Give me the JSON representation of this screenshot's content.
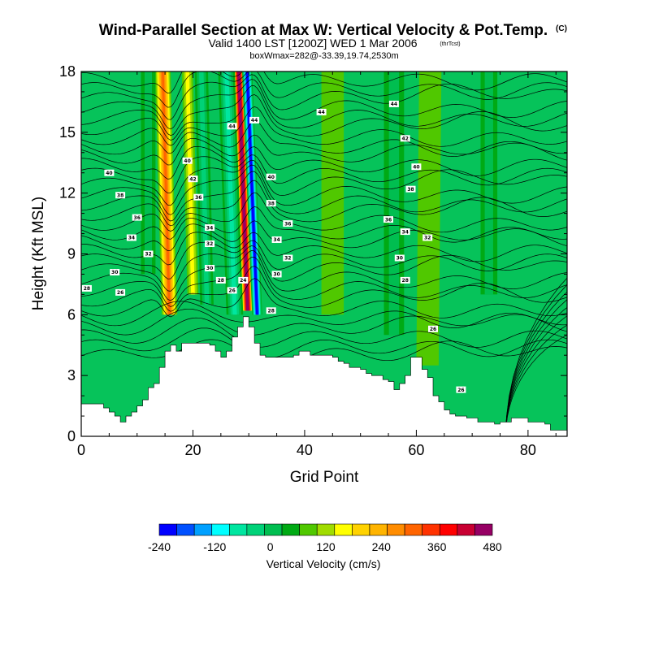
{
  "colors": {
    "background": "#ffffff",
    "terrain": "#ffffff",
    "contour": "#000000",
    "base_field": "#06c35a"
  },
  "chart_data": {
    "type": "heatmap",
    "title": "Wind-Parallel Section at Max W: Vertical Velocity & Pot.Temp.",
    "title_units": "(C)",
    "subtitle": "Valid 1400 LST [1200Z] WED 1 Mar 2006",
    "subtitle_tag": "(thrTcst)",
    "subtitle2": "boxWmax=282@-33.39,19.74,2530m",
    "xlabel": "Grid Point",
    "ylabel": "Height (Kft MSL)",
    "xlim": [
      0,
      87
    ],
    "ylim": [
      0,
      18
    ],
    "xticks": [
      0,
      20,
      40,
      60,
      80
    ],
    "yticks": [
      0,
      3,
      6,
      9,
      12,
      15,
      18
    ],
    "colorbar": {
      "label": "Vertical Velocity (cm/s)",
      "levels": [
        -240,
        -210,
        -180,
        -150,
        -120,
        -90,
        -60,
        -30,
        0,
        30,
        60,
        90,
        120,
        150,
        180,
        210,
        240,
        270,
        300,
        330,
        360,
        390,
        420,
        450,
        480
      ],
      "colors": [
        "#0000ff",
        "#0050ff",
        "#00a0ff",
        "#00ffff",
        "#00e6a0",
        "#00d278",
        "#00be50",
        "#00aa14",
        "#50c800",
        "#a0dc00",
        "#ffff00",
        "#ffd200",
        "#ffb400",
        "#ff8c00",
        "#ff6400",
        "#ff3200",
        "#ff0000",
        "#c80032",
        "#960064"
      ],
      "tick_labels": [
        "-240",
        "-120",
        "0",
        "120",
        "240",
        "360",
        "480"
      ],
      "tick_values": [
        -240,
        -120,
        0,
        120,
        240,
        360,
        480
      ]
    },
    "terrain_height_kft": [
      1.6,
      1.6,
      1.6,
      1.6,
      1.4,
      1.2,
      1.0,
      0.7,
      1.0,
      1.2,
      1.5,
      1.8,
      2.4,
      2.6,
      3.4,
      4.2,
      4.5,
      4.2,
      4.6,
      4.6,
      4.6,
      4.6,
      4.6,
      4.5,
      4.2,
      3.9,
      4.2,
      4.9,
      5.4,
      5.9,
      5.4,
      4.6,
      4.0,
      3.9,
      3.9,
      3.9,
      3.9,
      3.9,
      4.0,
      4.2,
      4.2,
      4.0,
      4.0,
      4.0,
      4.0,
      3.9,
      3.7,
      3.6,
      3.4,
      3.4,
      3.3,
      3.1,
      3.0,
      3.0,
      2.8,
      2.7,
      2.3,
      2.6,
      3.0,
      3.9,
      3.9,
      3.3,
      2.9,
      2.0,
      1.7,
      1.3,
      1.1,
      1.0,
      1.0,
      0.9,
      0.9,
      0.7,
      0.7,
      0.7,
      0.6,
      0.7,
      0.7,
      0.9,
      0.9,
      0.9,
      0.7,
      0.7,
      0.7,
      0.6,
      0.3,
      0.3,
      0.3
    ],
    "velocity_bands": [
      {
        "x": 15.8,
        "z_bottom": 6.0,
        "z_top": 18,
        "lean": -1.2,
        "half_width": 1.4,
        "peak": 200
      },
      {
        "x": 20.0,
        "z_bottom": 7.0,
        "z_top": 18,
        "lean": -1.0,
        "half_width": 1.0,
        "peak": 80
      },
      {
        "x": 22.5,
        "z_bottom": 6.5,
        "z_top": 18,
        "lean": -1.0,
        "half_width": 1.2,
        "peak": -90
      },
      {
        "x": 29.8,
        "z_bottom": 6.2,
        "z_top": 18,
        "lean": -1.6,
        "half_width": 1.0,
        "peak": 400
      },
      {
        "x": 31.5,
        "z_bottom": 6.0,
        "z_top": 18,
        "lean": -1.8,
        "half_width": 0.9,
        "peak": -260
      },
      {
        "x": 27.5,
        "z_bottom": 6.0,
        "z_top": 18,
        "lean": -1.5,
        "half_width": 1.5,
        "peak": -110
      },
      {
        "x": 45.0,
        "z_bottom": 6.0,
        "z_top": 18,
        "lean": 0.0,
        "half_width": 2.0,
        "peak": 40
      },
      {
        "x": 56.0,
        "z_bottom": 5.0,
        "z_top": 18,
        "lean": 0.0,
        "half_width": 1.8,
        "peak": -60
      },
      {
        "x": 62.0,
        "z_bottom": 3.5,
        "z_top": 18,
        "lean": 0.5,
        "half_width": 2.0,
        "peak": 40
      },
      {
        "x": 73.0,
        "z_bottom": 7.0,
        "z_top": 18,
        "lean": 0.0,
        "half_width": 1.5,
        "peak": -50
      },
      {
        "x": 12.0,
        "z_bottom": 8.0,
        "z_top": 18,
        "lean": 0.0,
        "half_width": 1.3,
        "peak": -60
      }
    ],
    "contour_labels": [
      {
        "text": "40",
        "x": 5,
        "y": 13.0
      },
      {
        "text": "38",
        "x": 7,
        "y": 11.9
      },
      {
        "text": "36",
        "x": 10,
        "y": 10.8
      },
      {
        "text": "34",
        "x": 9,
        "y": 9.8
      },
      {
        "text": "32",
        "x": 12,
        "y": 9.0
      },
      {
        "text": "30",
        "x": 6,
        "y": 8.1
      },
      {
        "text": "28",
        "x": 1,
        "y": 7.3
      },
      {
        "text": "26",
        "x": 7,
        "y": 7.1
      },
      {
        "text": "40",
        "x": 19,
        "y": 13.6
      },
      {
        "text": "42",
        "x": 20,
        "y": 12.7
      },
      {
        "text": "36",
        "x": 21,
        "y": 11.8
      },
      {
        "text": "34",
        "x": 23,
        "y": 10.3
      },
      {
        "text": "32",
        "x": 23,
        "y": 9.5
      },
      {
        "text": "30",
        "x": 23,
        "y": 8.3
      },
      {
        "text": "28",
        "x": 25,
        "y": 7.7
      },
      {
        "text": "26",
        "x": 27,
        "y": 7.2
      },
      {
        "text": "24",
        "x": 29,
        "y": 7.7
      },
      {
        "text": "44",
        "x": 27,
        "y": 15.3
      },
      {
        "text": "44",
        "x": 31,
        "y": 15.6
      },
      {
        "text": "40",
        "x": 34,
        "y": 12.8
      },
      {
        "text": "38",
        "x": 34,
        "y": 11.5
      },
      {
        "text": "36",
        "x": 37,
        "y": 10.5
      },
      {
        "text": "34",
        "x": 35,
        "y": 9.7
      },
      {
        "text": "32",
        "x": 37,
        "y": 8.8
      },
      {
        "text": "30",
        "x": 35,
        "y": 8.0
      },
      {
        "text": "28",
        "x": 34,
        "y": 6.2
      },
      {
        "text": "44",
        "x": 43,
        "y": 16.0
      },
      {
        "text": "44",
        "x": 56,
        "y": 16.4
      },
      {
        "text": "42",
        "x": 58,
        "y": 14.7
      },
      {
        "text": "40",
        "x": 60,
        "y": 13.3
      },
      {
        "text": "38",
        "x": 59,
        "y": 12.2
      },
      {
        "text": "36",
        "x": 55,
        "y": 10.7
      },
      {
        "text": "34",
        "x": 58,
        "y": 10.1
      },
      {
        "text": "32",
        "x": 62,
        "y": 9.8
      },
      {
        "text": "30",
        "x": 57,
        "y": 8.8
      },
      {
        "text": "28",
        "x": 58,
        "y": 7.7
      },
      {
        "text": "26",
        "x": 63,
        "y": 5.3
      },
      {
        "text": "26",
        "x": 68,
        "y": 2.3
      }
    ]
  }
}
